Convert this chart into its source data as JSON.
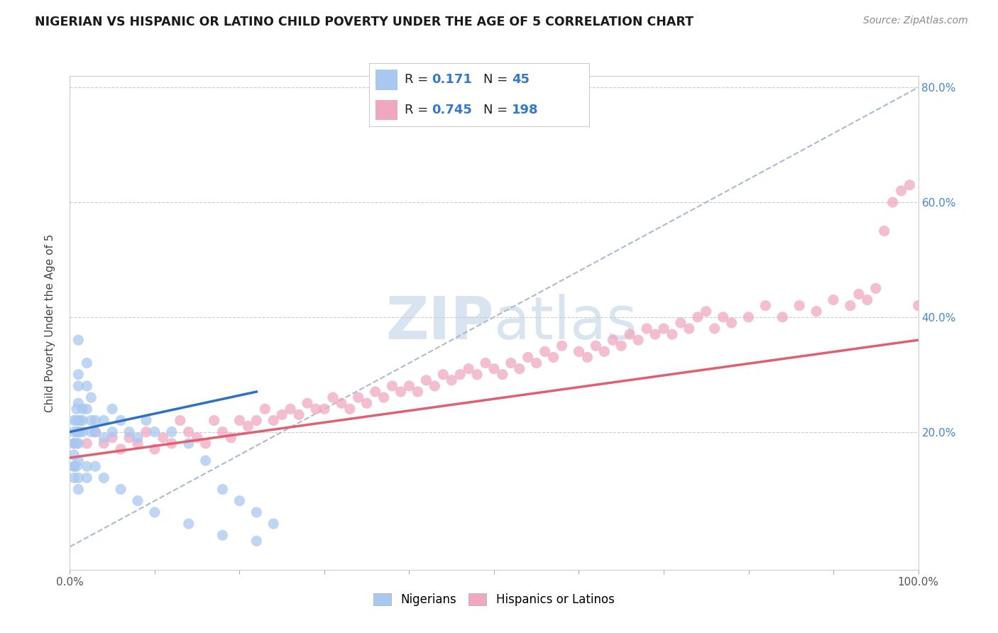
{
  "title": "NIGERIAN VS HISPANIC OR LATINO CHILD POVERTY UNDER THE AGE OF 5 CORRELATION CHART",
  "source": "Source: ZipAtlas.com",
  "ylabel": "Child Poverty Under the Age of 5",
  "xlim": [
    0,
    1
  ],
  "ylim": [
    -0.04,
    0.82
  ],
  "nigerian_R": 0.171,
  "nigerian_N": 45,
  "hispanic_R": 0.745,
  "hispanic_N": 198,
  "nigerian_color": "#a8c8f0",
  "hispanic_color": "#f0a8c0",
  "nigerian_line_color": "#3070c0",
  "hispanic_line_color": "#e06070",
  "reference_line_color": "#aabbd0",
  "watermark_color": "#d8e4f0",
  "background_color": "#ffffff",
  "nigerian_x": [
    0.005,
    0.005,
    0.005,
    0.005,
    0.005,
    0.008,
    0.008,
    0.008,
    0.008,
    0.01,
    0.01,
    0.01,
    0.01,
    0.01,
    0.01,
    0.01,
    0.012,
    0.012,
    0.015,
    0.015,
    0.015,
    0.02,
    0.02,
    0.02,
    0.025,
    0.025,
    0.025,
    0.03,
    0.03,
    0.04,
    0.04,
    0.05,
    0.05,
    0.06,
    0.07,
    0.08,
    0.09,
    0.1,
    0.12,
    0.14,
    0.16,
    0.18,
    0.2,
    0.22,
    0.24
  ],
  "nigerian_y": [
    0.22,
    0.2,
    0.18,
    0.16,
    0.14,
    0.24,
    0.22,
    0.2,
    0.18,
    0.36,
    0.3,
    0.28,
    0.25,
    0.22,
    0.2,
    0.18,
    0.22,
    0.2,
    0.24,
    0.22,
    0.2,
    0.32,
    0.28,
    0.24,
    0.26,
    0.22,
    0.2,
    0.22,
    0.2,
    0.22,
    0.19,
    0.24,
    0.2,
    0.22,
    0.2,
    0.19,
    0.22,
    0.2,
    0.2,
    0.18,
    0.15,
    0.1,
    0.08,
    0.06,
    0.04
  ],
  "nigerian_below_x": [
    0.005,
    0.005,
    0.008,
    0.01,
    0.01,
    0.01,
    0.02,
    0.02,
    0.03,
    0.04,
    0.06,
    0.08,
    0.1,
    0.14,
    0.18,
    0.22
  ],
  "nigerian_below_y": [
    0.14,
    0.12,
    0.14,
    0.15,
    0.12,
    0.1,
    0.14,
    0.12,
    0.14,
    0.12,
    0.1,
    0.08,
    0.06,
    0.04,
    0.02,
    0.01
  ],
  "hispanic_x": [
    0.005,
    0.01,
    0.02,
    0.03,
    0.04,
    0.05,
    0.06,
    0.07,
    0.08,
    0.09,
    0.1,
    0.11,
    0.12,
    0.13,
    0.14,
    0.15,
    0.16,
    0.17,
    0.18,
    0.19,
    0.2,
    0.21,
    0.22,
    0.23,
    0.24,
    0.25,
    0.26,
    0.27,
    0.28,
    0.29,
    0.3,
    0.31,
    0.32,
    0.33,
    0.34,
    0.35,
    0.36,
    0.37,
    0.38,
    0.39,
    0.4,
    0.41,
    0.42,
    0.43,
    0.44,
    0.45,
    0.46,
    0.47,
    0.48,
    0.49,
    0.5,
    0.51,
    0.52,
    0.53,
    0.54,
    0.55,
    0.56,
    0.57,
    0.58,
    0.6,
    0.61,
    0.62,
    0.63,
    0.64,
    0.65,
    0.66,
    0.67,
    0.68,
    0.69,
    0.7,
    0.71,
    0.72,
    0.73,
    0.74,
    0.75,
    0.76,
    0.77,
    0.78,
    0.8,
    0.82,
    0.84,
    0.86,
    0.88,
    0.9,
    0.92,
    0.93,
    0.94,
    0.95,
    0.96,
    0.97,
    0.98,
    0.99,
    1.0
  ],
  "hispanic_y": [
    0.18,
    0.2,
    0.18,
    0.2,
    0.18,
    0.19,
    0.17,
    0.19,
    0.18,
    0.2,
    0.17,
    0.19,
    0.18,
    0.22,
    0.2,
    0.19,
    0.18,
    0.22,
    0.2,
    0.19,
    0.22,
    0.21,
    0.22,
    0.24,
    0.22,
    0.23,
    0.24,
    0.23,
    0.25,
    0.24,
    0.24,
    0.26,
    0.25,
    0.24,
    0.26,
    0.25,
    0.27,
    0.26,
    0.28,
    0.27,
    0.28,
    0.27,
    0.29,
    0.28,
    0.3,
    0.29,
    0.3,
    0.31,
    0.3,
    0.32,
    0.31,
    0.3,
    0.32,
    0.31,
    0.33,
    0.32,
    0.34,
    0.33,
    0.35,
    0.34,
    0.33,
    0.35,
    0.34,
    0.36,
    0.35,
    0.37,
    0.36,
    0.38,
    0.37,
    0.38,
    0.37,
    0.39,
    0.38,
    0.4,
    0.41,
    0.38,
    0.4,
    0.39,
    0.4,
    0.42,
    0.4,
    0.42,
    0.41,
    0.43,
    0.42,
    0.44,
    0.43,
    0.45,
    0.55,
    0.6,
    0.62,
    0.63,
    0.42
  ],
  "nigerian_trend_x": [
    0.0,
    0.22
  ],
  "nigerian_trend_y": [
    0.2,
    0.27
  ],
  "hispanic_trend_x": [
    0.0,
    1.0
  ],
  "hispanic_trend_y": [
    0.155,
    0.36
  ]
}
